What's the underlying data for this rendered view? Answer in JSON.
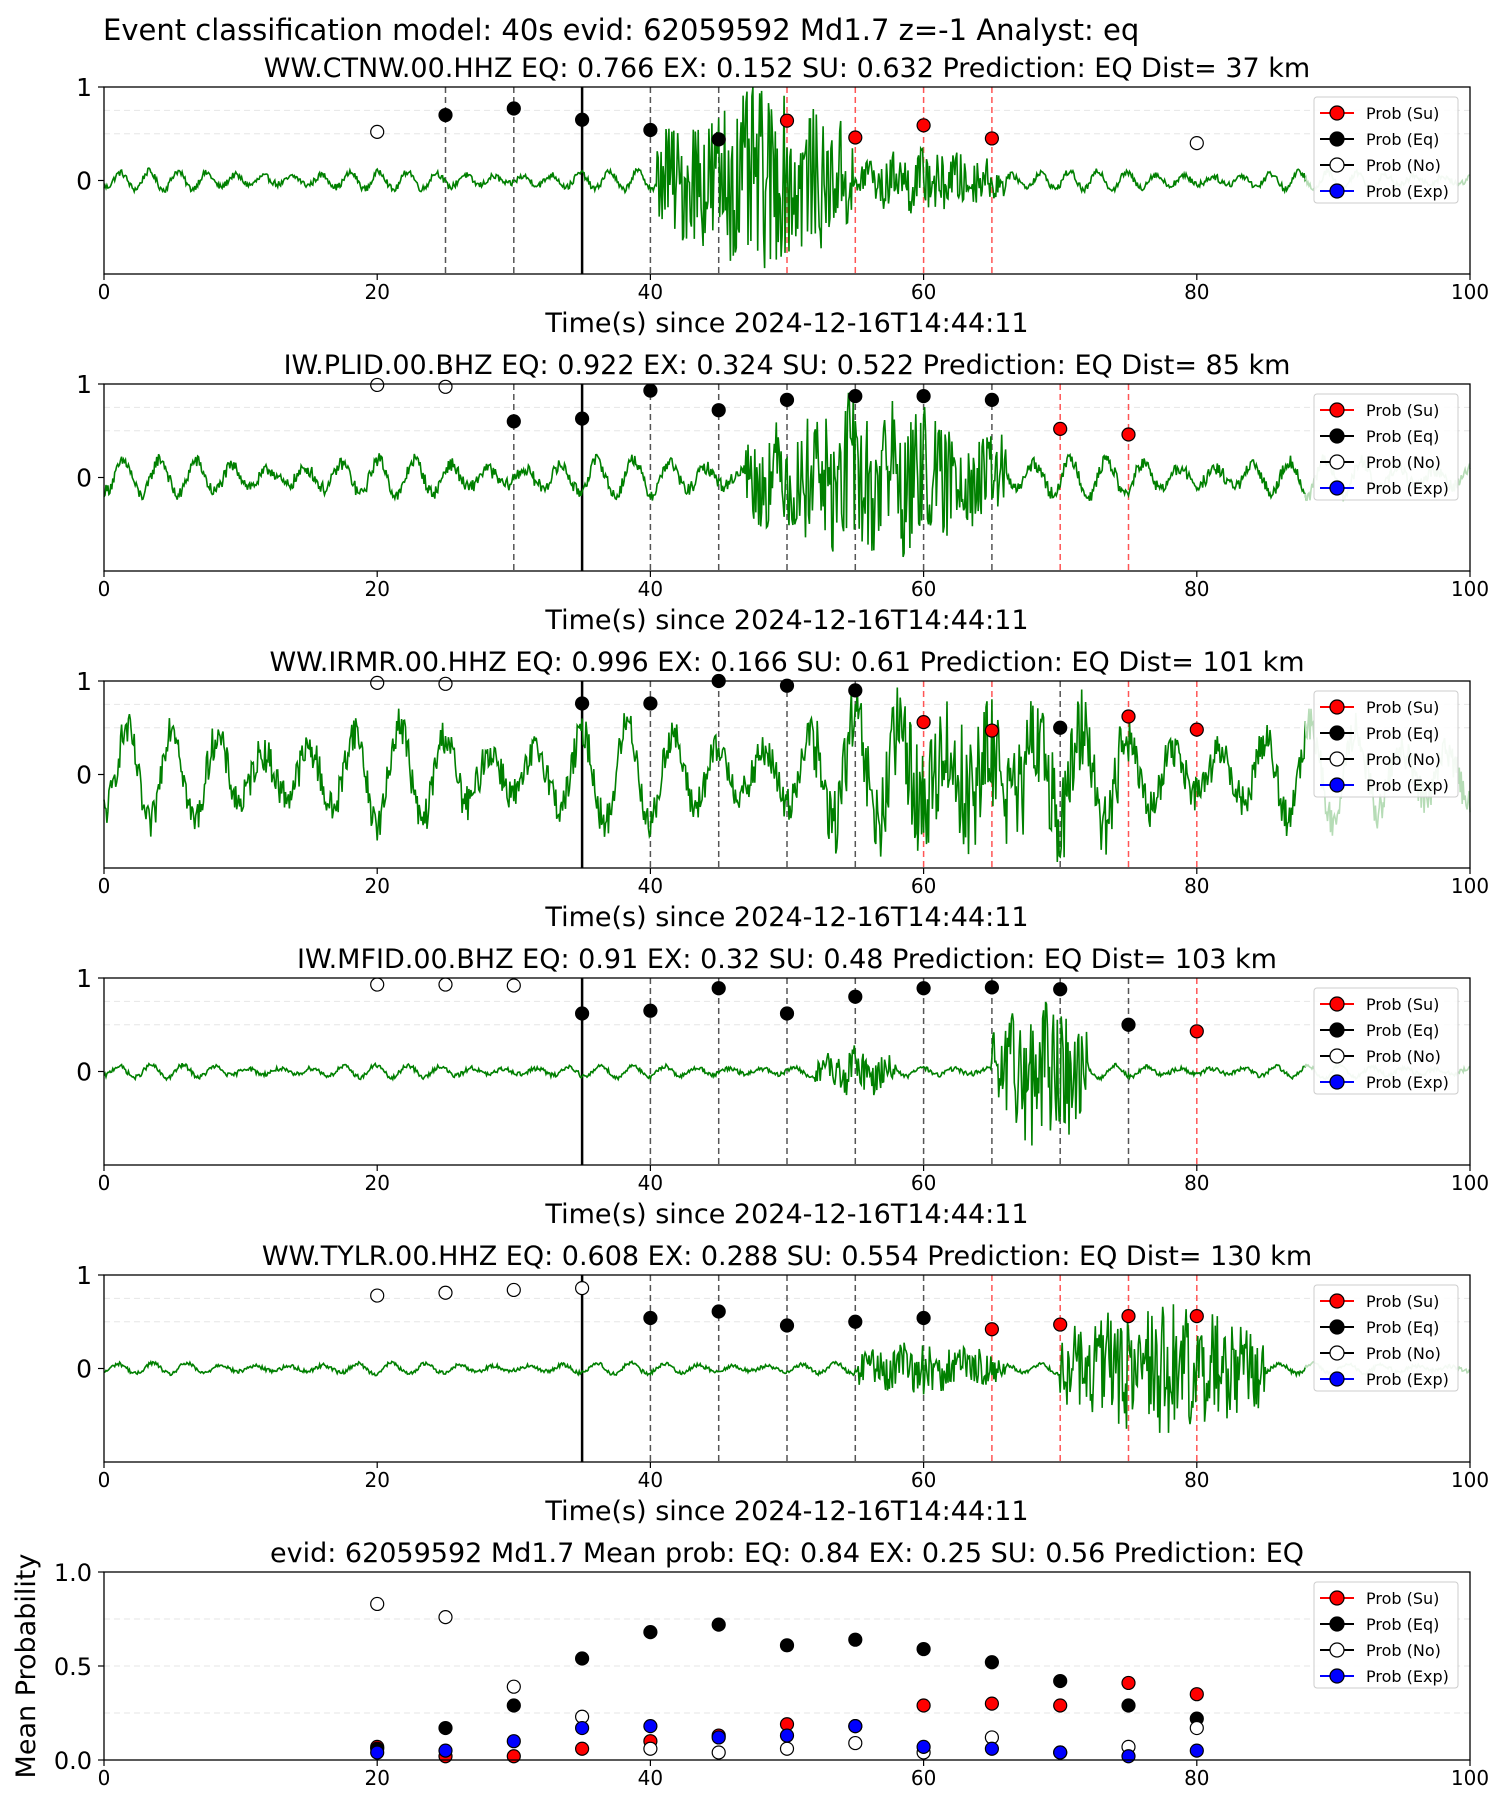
{
  "figure_title": "Event classification model: 40s evid: 62059592 Md1.7 z=-1 Analyst: eq",
  "colors": {
    "waveform": "#008000",
    "waveform_faded": "#b6dcb6",
    "prob_su": "#ff0000",
    "prob_eq": "#000000",
    "prob_no": "#ffffff",
    "prob_exp": "#0000ff",
    "window_line": "#555555",
    "su_line": "#ff5555",
    "trigger_line": "#000000"
  },
  "legend": [
    {
      "key": "su",
      "label": "Prob (Su)"
    },
    {
      "key": "eq",
      "label": "Prob (Eq)"
    },
    {
      "key": "no",
      "label": "Prob (No)"
    },
    {
      "key": "exp",
      "label": "Prob (Exp)"
    }
  ],
  "chart_data": [
    {
      "type": "scatter",
      "title": "WW.CTNW.00.HHZ   EQ: 0.766   EX: 0.152   SU: 0.632   Prediction: EQ    Dist= 37 km",
      "xlabel": "Time(s) since 2024-12-16T14:44:11",
      "xlim": [
        0,
        100
      ],
      "xticks": [
        0,
        20,
        40,
        60,
        80,
        100
      ],
      "yticks": [
        "0",
        "1"
      ],
      "trigger_time": 35,
      "waveform_amplitude_profile": {
        "base": 0.1,
        "bursts": [
          {
            "start": 40.5,
            "end": 55,
            "amp": 1.0
          },
          {
            "start": 55,
            "end": 66,
            "amp": 0.35
          }
        ]
      },
      "faded_from": 88,
      "points": [
        {
          "x": 20,
          "y": 0.52,
          "class": "no"
        },
        {
          "x": 25,
          "y": 0.7,
          "class": "eq"
        },
        {
          "x": 30,
          "y": 0.77,
          "class": "eq"
        },
        {
          "x": 35,
          "y": 0.65,
          "class": "eq"
        },
        {
          "x": 40,
          "y": 0.54,
          "class": "eq"
        },
        {
          "x": 45,
          "y": 0.44,
          "class": "eq"
        },
        {
          "x": 50,
          "y": 0.64,
          "class": "su"
        },
        {
          "x": 55,
          "y": 0.46,
          "class": "su"
        },
        {
          "x": 60,
          "y": 0.59,
          "class": "su"
        },
        {
          "x": 65,
          "y": 0.45,
          "class": "su"
        },
        {
          "x": 80,
          "y": 0.4,
          "class": "no"
        }
      ]
    },
    {
      "type": "scatter",
      "title": "IW.PLID.00.BHZ   EQ: 0.922  EX: 0.324  SU: 0.522   Prediction: EQ    Dist= 85 km",
      "xlabel": "Time(s) since 2024-12-16T14:44:11",
      "xlim": [
        0,
        100
      ],
      "xticks": [
        0,
        20,
        40,
        60,
        80,
        100
      ],
      "yticks": [
        "0",
        "1"
      ],
      "trigger_time": 35,
      "waveform_amplitude_profile": {
        "base": 0.2,
        "bursts": [
          {
            "start": 47,
            "end": 66,
            "amp": 0.85
          }
        ]
      },
      "faded_from": 88,
      "points": [
        {
          "x": 20,
          "y": 0.99,
          "class": "no"
        },
        {
          "x": 25,
          "y": 0.97,
          "class": "no"
        },
        {
          "x": 30,
          "y": 0.6,
          "class": "eq"
        },
        {
          "x": 35,
          "y": 0.63,
          "class": "eq"
        },
        {
          "x": 40,
          "y": 0.93,
          "class": "eq"
        },
        {
          "x": 45,
          "y": 0.72,
          "class": "eq"
        },
        {
          "x": 50,
          "y": 0.83,
          "class": "eq"
        },
        {
          "x": 55,
          "y": 0.87,
          "class": "eq"
        },
        {
          "x": 60,
          "y": 0.87,
          "class": "eq"
        },
        {
          "x": 65,
          "y": 0.83,
          "class": "eq"
        },
        {
          "x": 70,
          "y": 0.52,
          "class": "su"
        },
        {
          "x": 75,
          "y": 0.46,
          "class": "su"
        }
      ]
    },
    {
      "type": "scatter",
      "title": "WW.IRMR.00.HHZ   EQ: 0.996  EX: 0.166  SU: 0.61   Prediction: EQ    Dist= 101 km",
      "xlabel": "Time(s) since 2024-12-16T14:44:11",
      "xlim": [
        0,
        100
      ],
      "xticks": [
        0,
        20,
        40,
        60,
        80,
        100
      ],
      "yticks": [
        "0",
        "1"
      ],
      "trigger_time": 35,
      "waveform_amplitude_profile": {
        "base": 0.55,
        "bursts": [
          {
            "start": 52,
            "end": 75,
            "amp": 0.7
          }
        ]
      },
      "faded_from": 88,
      "points": [
        {
          "x": 20,
          "y": 0.98,
          "class": "no"
        },
        {
          "x": 25,
          "y": 0.97,
          "class": "no"
        },
        {
          "x": 35,
          "y": 0.76,
          "class": "eq"
        },
        {
          "x": 40,
          "y": 0.76,
          "class": "eq"
        },
        {
          "x": 45,
          "y": 1.0,
          "class": "eq"
        },
        {
          "x": 50,
          "y": 0.95,
          "class": "eq"
        },
        {
          "x": 55,
          "y": 0.9,
          "class": "eq"
        },
        {
          "x": 60,
          "y": 0.56,
          "class": "su"
        },
        {
          "x": 65,
          "y": 0.47,
          "class": "su"
        },
        {
          "x": 70,
          "y": 0.5,
          "class": "eq"
        },
        {
          "x": 75,
          "y": 0.62,
          "class": "su"
        },
        {
          "x": 80,
          "y": 0.48,
          "class": "su"
        }
      ]
    },
    {
      "type": "scatter",
      "title": "IW.MFID.00.BHZ   EQ: 0.91  EX: 0.32  SU: 0.48   Prediction: EQ    Dist= 103 km",
      "xlabel": "Time(s) since 2024-12-16T14:44:11",
      "xlim": [
        0,
        100
      ],
      "xticks": [
        0,
        20,
        40,
        60,
        80,
        100
      ],
      "yticks": [
        "0",
        "1"
      ],
      "trigger_time": 35,
      "waveform_amplitude_profile": {
        "base": 0.07,
        "bursts": [
          {
            "start": 52,
            "end": 58,
            "amp": 0.25
          },
          {
            "start": 65,
            "end": 72,
            "amp": 0.9
          }
        ]
      },
      "faded_from": 88,
      "points": [
        {
          "x": 20,
          "y": 0.93,
          "class": "no"
        },
        {
          "x": 25,
          "y": 0.93,
          "class": "no"
        },
        {
          "x": 30,
          "y": 0.92,
          "class": "no"
        },
        {
          "x": 35,
          "y": 0.62,
          "class": "eq"
        },
        {
          "x": 40,
          "y": 0.65,
          "class": "eq"
        },
        {
          "x": 45,
          "y": 0.89,
          "class": "eq"
        },
        {
          "x": 50,
          "y": 0.62,
          "class": "eq"
        },
        {
          "x": 55,
          "y": 0.8,
          "class": "eq"
        },
        {
          "x": 60,
          "y": 0.89,
          "class": "eq"
        },
        {
          "x": 65,
          "y": 0.9,
          "class": "eq"
        },
        {
          "x": 70,
          "y": 0.88,
          "class": "eq"
        },
        {
          "x": 75,
          "y": 0.5,
          "class": "eq"
        },
        {
          "x": 80,
          "y": 0.43,
          "class": "su"
        }
      ]
    },
    {
      "type": "scatter",
      "title": "WW.TYLR.00.HHZ   EQ: 0.608  EX: 0.288  SU: 0.554   Prediction: EQ    Dist= 130 km",
      "xlabel": "Time(s) since 2024-12-16T14:44:11",
      "xlim": [
        0,
        100
      ],
      "xticks": [
        0,
        20,
        40,
        60,
        80,
        100
      ],
      "yticks": [
        "0",
        "1"
      ],
      "trigger_time": 35,
      "waveform_amplitude_profile": {
        "base": 0.06,
        "bursts": [
          {
            "start": 55,
            "end": 66,
            "amp": 0.3
          },
          {
            "start": 70,
            "end": 85,
            "amp": 0.75
          }
        ]
      },
      "faded_from": 88,
      "points": [
        {
          "x": 20,
          "y": 0.78,
          "class": "no"
        },
        {
          "x": 25,
          "y": 0.81,
          "class": "no"
        },
        {
          "x": 30,
          "y": 0.84,
          "class": "no"
        },
        {
          "x": 35,
          "y": 0.86,
          "class": "no"
        },
        {
          "x": 40,
          "y": 0.54,
          "class": "eq"
        },
        {
          "x": 45,
          "y": 0.61,
          "class": "eq"
        },
        {
          "x": 50,
          "y": 0.46,
          "class": "eq"
        },
        {
          "x": 55,
          "y": 0.5,
          "class": "eq"
        },
        {
          "x": 60,
          "y": 0.54,
          "class": "eq"
        },
        {
          "x": 65,
          "y": 0.42,
          "class": "su"
        },
        {
          "x": 70,
          "y": 0.47,
          "class": "su"
        },
        {
          "x": 75,
          "y": 0.56,
          "class": "su"
        },
        {
          "x": 80,
          "y": 0.56,
          "class": "su"
        }
      ]
    },
    {
      "type": "scatter",
      "title": "evid: 62059592  Md1.7   Mean prob:   EQ: 0.84  EX: 0.25  SU: 0.56   Prediction: EQ",
      "ylabel": "Mean Probability",
      "xlim": [
        0,
        100
      ],
      "ylim": [
        0,
        1
      ],
      "xticks": [
        0,
        20,
        40,
        60,
        80,
        100
      ],
      "yticks": [
        "0.0",
        "0.5",
        "1.0"
      ],
      "x": [
        20,
        25,
        30,
        35,
        40,
        45,
        50,
        55,
        60,
        65,
        70,
        75,
        80
      ],
      "series": [
        {
          "name": "Prob (Su)",
          "key": "su",
          "values": [
            0.07,
            0.02,
            0.02,
            0.06,
            0.1,
            0.13,
            0.19,
            0.18,
            0.29,
            0.3,
            0.29,
            0.41,
            0.35
          ]
        },
        {
          "name": "Prob (Eq)",
          "key": "eq",
          "values": [
            0.06,
            0.17,
            0.29,
            0.54,
            0.68,
            0.72,
            0.61,
            0.64,
            0.59,
            0.52,
            0.42,
            0.29,
            0.22
          ]
        },
        {
          "name": "Prob (No)",
          "key": "no",
          "values": [
            0.83,
            0.76,
            0.39,
            0.23,
            0.06,
            0.04,
            0.06,
            0.09,
            0.04,
            0.12,
            0.04,
            0.07,
            0.17
          ]
        },
        {
          "name": "Prob (Exp)",
          "key": "exp",
          "values": [
            0.04,
            0.05,
            0.1,
            0.17,
            0.18,
            0.12,
            0.13,
            0.18,
            0.07,
            0.06,
            0.04,
            0.02,
            0.05
          ]
        }
      ]
    }
  ]
}
